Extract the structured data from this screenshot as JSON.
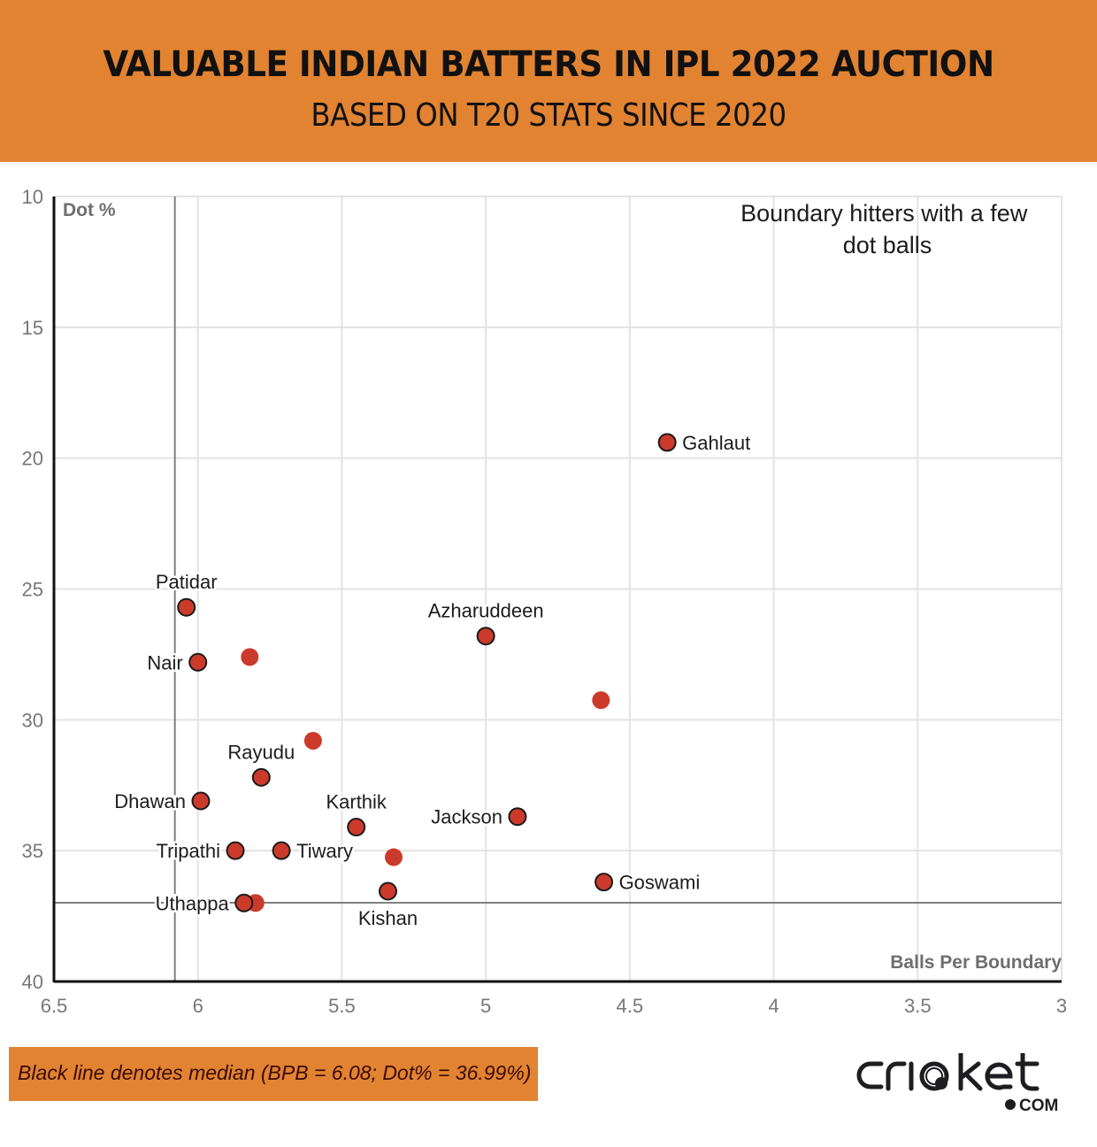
{
  "header": {
    "title": "VALUABLE INDIAN BATTERS IN IPL 2022 AUCTION",
    "subtitle": "BASED ON T20 STATS SINCE 2020",
    "background_color": "#e28331"
  },
  "chart_data": {
    "type": "scatter",
    "title": "VALUABLE INDIAN BATTERS IN IPL 2022 AUCTION",
    "subtitle": "BASED ON T20 STATS SINCE 2020",
    "xlabel": "Balls Per Boundary",
    "ylabel": "Dot %",
    "xlim": [
      6.5,
      3
    ],
    "ylim": [
      10,
      40
    ],
    "x_reversed": true,
    "y_reversed": true,
    "x_ticks": [
      "6.5",
      "6",
      "5.5",
      "5",
      "4.5",
      "4",
      "3.5",
      "3"
    ],
    "x_tick_values": [
      6.5,
      6,
      5.5,
      5,
      4.5,
      4,
      3.5,
      3
    ],
    "y_ticks": [
      "10",
      "15",
      "20",
      "25",
      "30",
      "35",
      "40"
    ],
    "y_tick_values": [
      10,
      15,
      20,
      25,
      30,
      35,
      40
    ],
    "grid": true,
    "point_color": "#cc3a2b",
    "median": {
      "x": 6.08,
      "y": 36.99
    },
    "annotation": [
      "Boundary hitters with a few",
      "dot balls"
    ],
    "points": [
      {
        "name": "Gahlaut",
        "x": 4.37,
        "y": 19.4,
        "outlined": true,
        "label_pos": "right"
      },
      {
        "name": "Patidar",
        "x": 6.04,
        "y": 25.7,
        "outlined": true,
        "label_pos": "top"
      },
      {
        "name": "Nair",
        "x": 6.0,
        "y": 27.8,
        "outlined": true,
        "label_pos": "left"
      },
      {
        "name": "",
        "x": 5.82,
        "y": 27.6,
        "outlined": false,
        "label_pos": "none"
      },
      {
        "name": "Azharuddeen",
        "x": 5.0,
        "y": 26.8,
        "outlined": true,
        "label_pos": "top"
      },
      {
        "name": "",
        "x": 4.6,
        "y": 29.25,
        "outlined": false,
        "label_pos": "none"
      },
      {
        "name": "",
        "x": 5.6,
        "y": 30.8,
        "outlined": false,
        "label_pos": "none"
      },
      {
        "name": "Rayudu",
        "x": 5.78,
        "y": 32.2,
        "outlined": true,
        "label_pos": "top"
      },
      {
        "name": "Dhawan",
        "x": 5.99,
        "y": 33.1,
        "outlined": true,
        "label_pos": "left"
      },
      {
        "name": "Karthik",
        "x": 5.45,
        "y": 34.1,
        "outlined": true,
        "label_pos": "top"
      },
      {
        "name": "Jackson",
        "x": 4.89,
        "y": 33.7,
        "outlined": true,
        "label_pos": "left"
      },
      {
        "name": "Tripathi",
        "x": 5.87,
        "y": 35.0,
        "outlined": true,
        "label_pos": "left"
      },
      {
        "name": "Tiwary",
        "x": 5.71,
        "y": 35.0,
        "outlined": true,
        "label_pos": "right"
      },
      {
        "name": "",
        "x": 5.32,
        "y": 35.25,
        "outlined": false,
        "label_pos": "none"
      },
      {
        "name": "Goswami",
        "x": 4.59,
        "y": 36.2,
        "outlined": true,
        "label_pos": "right"
      },
      {
        "name": "Kishan",
        "x": 5.34,
        "y": 36.55,
        "outlined": true,
        "label_pos": "bottom"
      },
      {
        "name": "",
        "x": 5.8,
        "y": 37.0,
        "outlined": false,
        "label_pos": "none"
      },
      {
        "name": "Uthappa",
        "x": 5.84,
        "y": 37.0,
        "outlined": true,
        "label_pos": "left"
      }
    ]
  },
  "footer": {
    "note": "Black line denotes median (BPB = 6.08; Dot% = 36.99%)",
    "logo_text": "cricket",
    "logo_suffix": "COM"
  }
}
